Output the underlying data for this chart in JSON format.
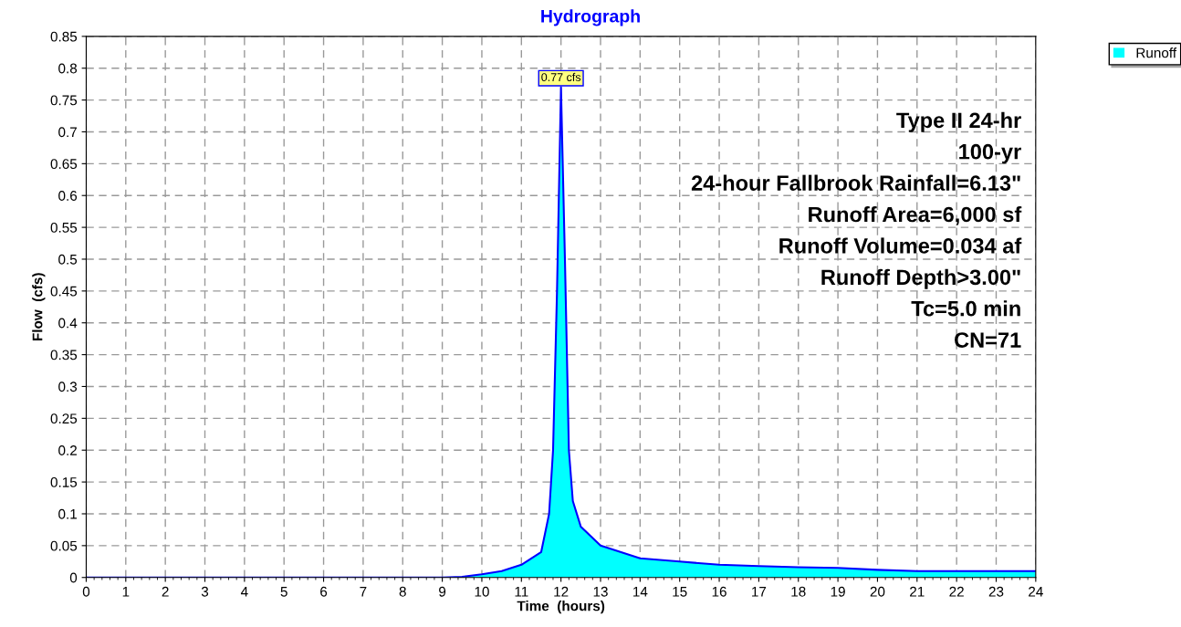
{
  "chart_data": {
    "type": "area",
    "title": "Hydrograph",
    "xlabel": "Time  (hours)",
    "ylabel": "Flow  (cfs)",
    "x": [
      0,
      9,
      9.5,
      10,
      10.5,
      11,
      11.5,
      11.7,
      11.8,
      11.9,
      12.0,
      12.1,
      12.2,
      12.3,
      12.5,
      13,
      13.5,
      14,
      15,
      16,
      17,
      18,
      19,
      20,
      21,
      24
    ],
    "series": [
      {
        "name": "Runoff",
        "color": "#00ffff",
        "values": [
          0,
          0,
          0.001,
          0.005,
          0.01,
          0.02,
          0.04,
          0.1,
          0.2,
          0.45,
          0.77,
          0.5,
          0.2,
          0.12,
          0.08,
          0.05,
          0.04,
          0.03,
          0.025,
          0.02,
          0.018,
          0.016,
          0.015,
          0.012,
          0.01,
          0.01
        ]
      }
    ],
    "xlim": [
      0,
      24
    ],
    "xticks": [
      0,
      1,
      2,
      3,
      4,
      5,
      6,
      7,
      8,
      9,
      10,
      11,
      12,
      13,
      14,
      15,
      16,
      17,
      18,
      19,
      20,
      21,
      22,
      23,
      24
    ],
    "ylim": [
      0,
      0.85
    ],
    "yticks": [
      0,
      0.05,
      0.1,
      0.15,
      0.2,
      0.25,
      0.3,
      0.35,
      0.4,
      0.45,
      0.5,
      0.55,
      0.6,
      0.65,
      0.7,
      0.75,
      0.8,
      0.85
    ],
    "grid": true,
    "legend": "top right",
    "annotations": [
      {
        "text": "0.77 cfs",
        "x": 12.0,
        "y": 0.77
      },
      "Type II 24-hr",
      "100-yr",
      "24-hour Fallbrook Rainfall=6.13\"",
      "Runoff Area=6,000 sf",
      "Runoff Volume=0.034 af",
      "Runoff Depth>3.00\"",
      "Tc=5.0 min",
      "CN=71"
    ]
  }
}
